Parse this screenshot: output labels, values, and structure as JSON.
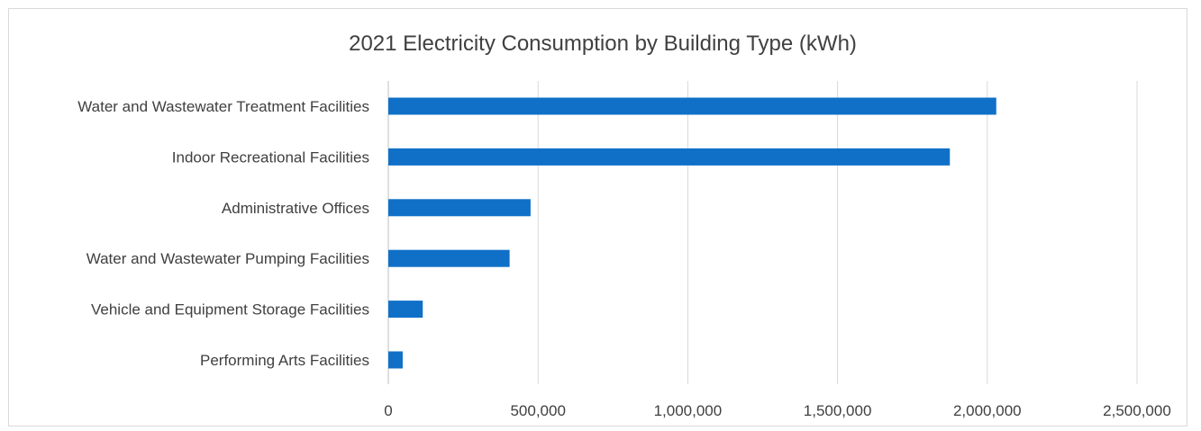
{
  "chart_data": {
    "type": "bar",
    "orientation": "horizontal",
    "title": "2021 Electricity Consumption by Building Type (kWh)",
    "xlabel": "",
    "ylabel": "",
    "categories": [
      "Water and Wastewater Treatment Facilities",
      "Indoor Recreational Facilities",
      "Administrative Offices",
      "Water and Wastewater Pumping Facilities",
      "Vehicle and Equipment Storage Facilities",
      "Performing Arts Facilities"
    ],
    "values": [
      2030000,
      1875000,
      475000,
      405000,
      115000,
      48000
    ],
    "xlim": [
      0,
      2500000
    ],
    "xticks": [
      0,
      500000,
      1000000,
      1500000,
      2000000,
      2500000
    ],
    "xtick_labels": [
      "0",
      "500,000",
      "1,000,000",
      "1,500,000",
      "2,000,000",
      "2,500,000"
    ],
    "grid": "vertical",
    "legend": "none",
    "bar_color": "#1070C8"
  }
}
